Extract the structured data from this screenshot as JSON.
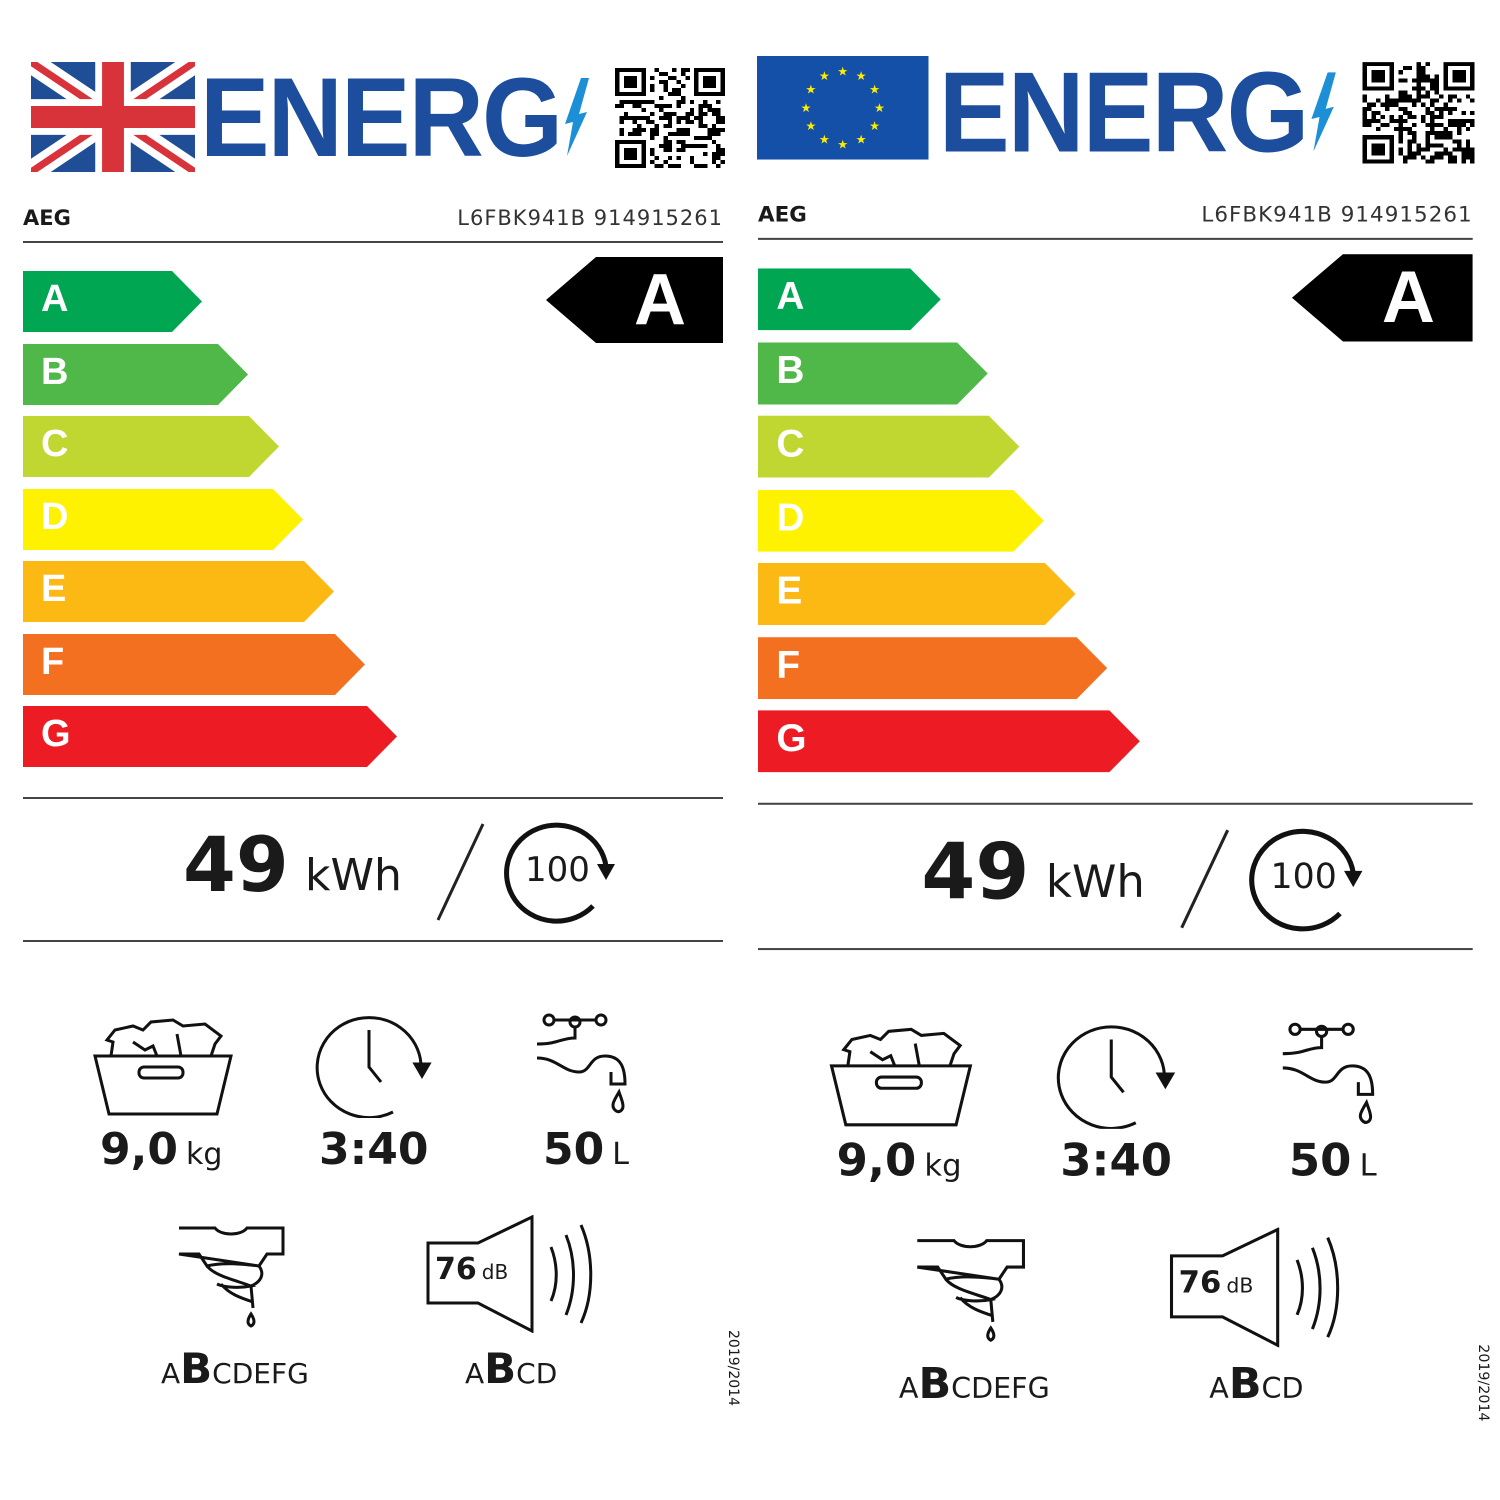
{
  "labels": [
    {
      "flag": "uk",
      "title": "ENERG",
      "brand": "AEG",
      "model": "L6FBK941B 914915261",
      "scale": [
        "A",
        "B",
        "C",
        "D",
        "E",
        "F",
        "G"
      ],
      "scale_colors": [
        "#00a651",
        "#50b848",
        "#bfd730",
        "#fff200",
        "#fdb913",
        "#f37021",
        "#ed1c24"
      ],
      "rating": "A",
      "energy": {
        "value": "49",
        "unit": "kWh",
        "cycles": "100"
      },
      "capacity": {
        "value": "9,0",
        "unit": "kg"
      },
      "duration": {
        "value": "3:40"
      },
      "water": {
        "value": "50",
        "unit": "L"
      },
      "spin_class": {
        "before": "A",
        "selected": "B",
        "after": "CDEFG"
      },
      "noise": {
        "value": "76",
        "unit": "dB",
        "before": "A",
        "selected": "B",
        "after": "CD"
      },
      "regulation": "2019/2014"
    },
    {
      "flag": "eu",
      "title": "ENERG",
      "brand": "AEG",
      "model": "L6FBK941B 914915261",
      "scale": [
        "A",
        "B",
        "C",
        "D",
        "E",
        "F",
        "G"
      ],
      "scale_colors": [
        "#00a651",
        "#50b848",
        "#bfd730",
        "#fff200",
        "#fdb913",
        "#f37021",
        "#ed1c24"
      ],
      "rating": "A",
      "energy": {
        "value": "49",
        "unit": "kWh",
        "cycles": "100"
      },
      "capacity": {
        "value": "9,0",
        "unit": "kg"
      },
      "duration": {
        "value": "3:40"
      },
      "water": {
        "value": "50",
        "unit": "L"
      },
      "spin_class": {
        "before": "A",
        "selected": "B",
        "after": "CDEFG"
      },
      "noise": {
        "value": "76",
        "unit": "dB",
        "before": "A",
        "selected": "B",
        "after": "CD"
      },
      "regulation": "2019/2014"
    }
  ],
  "brand_color": "#1c4e9d"
}
